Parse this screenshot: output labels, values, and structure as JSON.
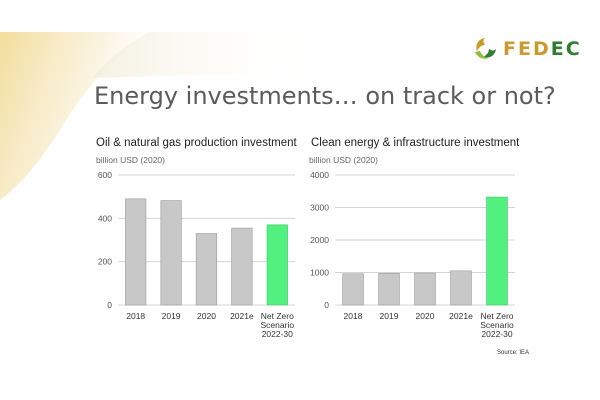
{
  "slide": {
    "title": "Energy investments… on track or not?",
    "logo_text_a": "FED",
    "logo_text_b": "EC",
    "source": "Source: IEA"
  },
  "colors": {
    "bar_default": "#c8c8c8",
    "bar_highlight": "#52f07f",
    "bar_stroke": "#9a9a9a",
    "grid": "#d4d4d4",
    "brand_gold": "#c99a2e",
    "brand_green": "#2e7d32"
  },
  "chart_data": [
    {
      "type": "bar",
      "title": "Oil & natural gas production investment",
      "ylabel": "billion USD (2020)",
      "categories": [
        "2018",
        "2019",
        "2020",
        "2021e",
        "Net Zero Scenario 2022-30"
      ],
      "category_lines": [
        [
          "2018"
        ],
        [
          "2019"
        ],
        [
          "2020"
        ],
        [
          "2021e"
        ],
        [
          "Net Zero",
          "Scenario",
          "2022-30"
        ]
      ],
      "values": [
        490,
        482,
        330,
        355,
        370
      ],
      "highlight_index": 4,
      "ylim": [
        0,
        600
      ],
      "yticks": [
        0,
        200,
        400,
        600
      ],
      "grid": true
    },
    {
      "type": "bar",
      "title": "Clean energy & infrastructure investment",
      "ylabel": "billion USD (2020)",
      "categories": [
        "2018",
        "2019",
        "2020",
        "2021e",
        "Net Zero Scenario 2022-30"
      ],
      "category_lines": [
        [
          "2018"
        ],
        [
          "2019"
        ],
        [
          "2020"
        ],
        [
          "2021e"
        ],
        [
          "Net Zero",
          "Scenario",
          "2022-30"
        ]
      ],
      "values": [
        960,
        975,
        985,
        1050,
        3320
      ],
      "highlight_index": 4,
      "ylim": [
        0,
        4000
      ],
      "yticks": [
        0,
        1000,
        2000,
        3000,
        4000
      ],
      "grid": true
    }
  ]
}
